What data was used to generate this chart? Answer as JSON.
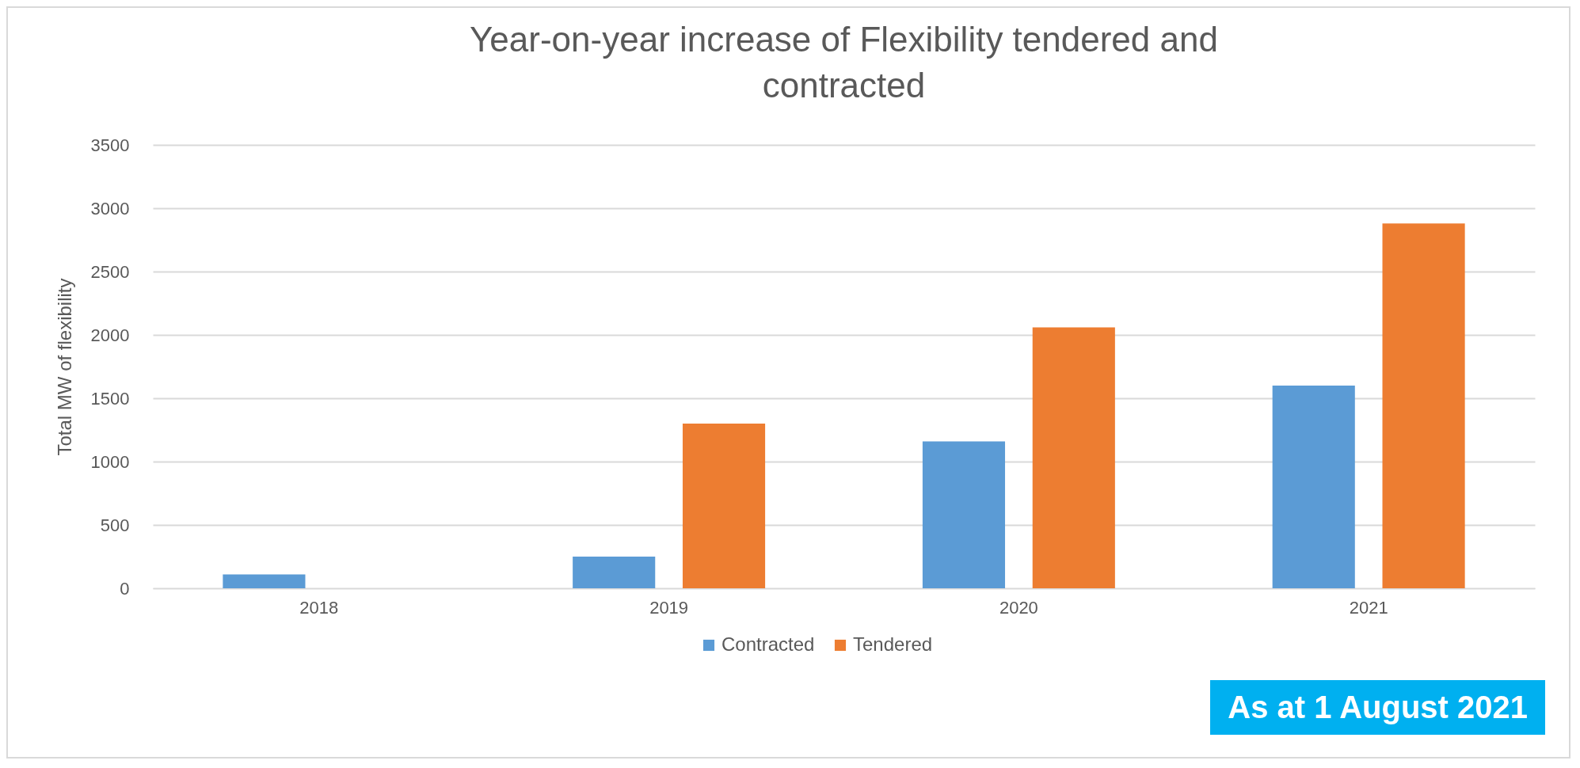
{
  "chart_data": {
    "type": "bar",
    "title": "Year-on-year increase of Flexibility tendered and contracted",
    "ylabel": "Total MW of flexibility",
    "categories": [
      "2018",
      "2019",
      "2020",
      "2021"
    ],
    "series": [
      {
        "name": "Contracted",
        "color": "#5b9bd5",
        "values": [
          110,
          250,
          1160,
          1600
        ]
      },
      {
        "name": "Tendered",
        "color": "#ed7d31",
        "values": [
          null,
          1300,
          2060,
          2880
        ]
      }
    ],
    "ylim": [
      0,
      3500
    ],
    "yticks": [
      0,
      500,
      1000,
      1500,
      2000,
      2500,
      3000,
      3500
    ],
    "grid": "y",
    "legend": "bottom",
    "annotations": [
      "As at 1 August 2021"
    ]
  }
}
